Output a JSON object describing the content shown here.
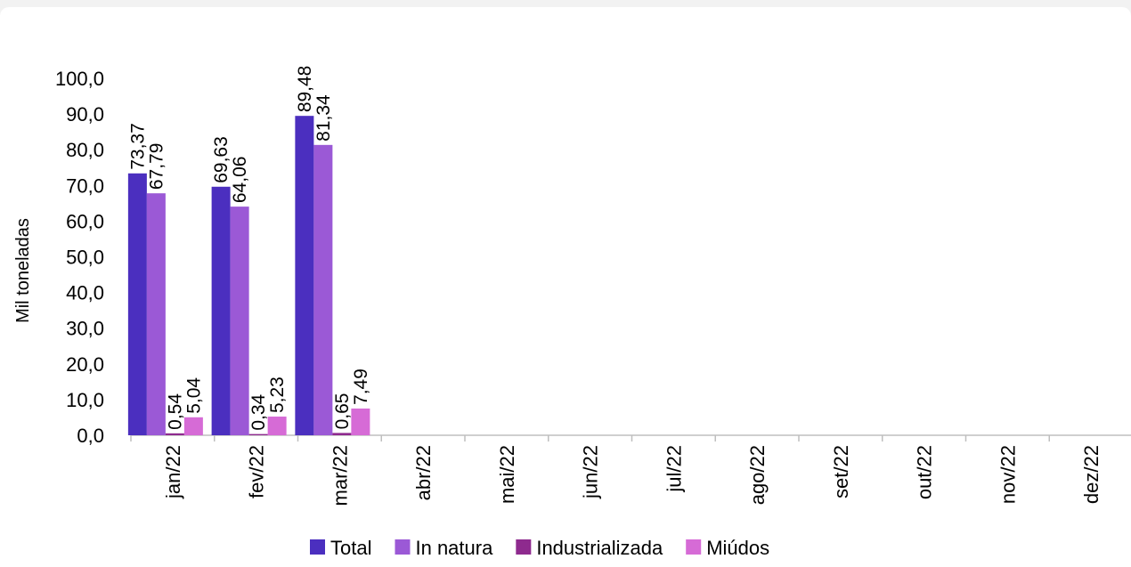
{
  "chart_data": {
    "type": "bar",
    "ylabel": "Mil toneladas",
    "ylim": [
      0,
      100
    ],
    "yticks": [
      "0,0",
      "10,0",
      "20,0",
      "30,0",
      "40,0",
      "50,0",
      "60,0",
      "70,0",
      "80,0",
      "90,0",
      "100,0"
    ],
    "categories": [
      "jan/22",
      "fev/22",
      "mar/22",
      "abr/22",
      "mai/22",
      "jun/22",
      "jul/22",
      "ago/22",
      "set/22",
      "out/22",
      "nov/22",
      "dez/22"
    ],
    "series": [
      {
        "name": "Total",
        "color": "#4b2fbf",
        "values": [
          73.37,
          69.63,
          89.48,
          null,
          null,
          null,
          null,
          null,
          null,
          null,
          null,
          null
        ],
        "labels": [
          "73,37",
          "69,63",
          "89,48"
        ]
      },
      {
        "name": "In natura",
        "color": "#9b59d6",
        "values": [
          67.79,
          64.06,
          81.34,
          null,
          null,
          null,
          null,
          null,
          null,
          null,
          null,
          null
        ],
        "labels": [
          "67,79",
          "64,06",
          "81,34"
        ]
      },
      {
        "name": "Industrializada",
        "color": "#8e2a8e",
        "values": [
          0.54,
          0.34,
          0.65,
          null,
          null,
          null,
          null,
          null,
          null,
          null,
          null,
          null
        ],
        "labels": [
          "0,54",
          "0,34",
          "0,65"
        ]
      },
      {
        "name": "Miúdos",
        "color": "#d66bd6",
        "values": [
          5.04,
          5.23,
          7.49,
          null,
          null,
          null,
          null,
          null,
          null,
          null,
          null,
          null
        ],
        "labels": [
          "5,04",
          "5,23",
          "7,49"
        ]
      }
    ],
    "legend": "bottom",
    "grid": false
  }
}
